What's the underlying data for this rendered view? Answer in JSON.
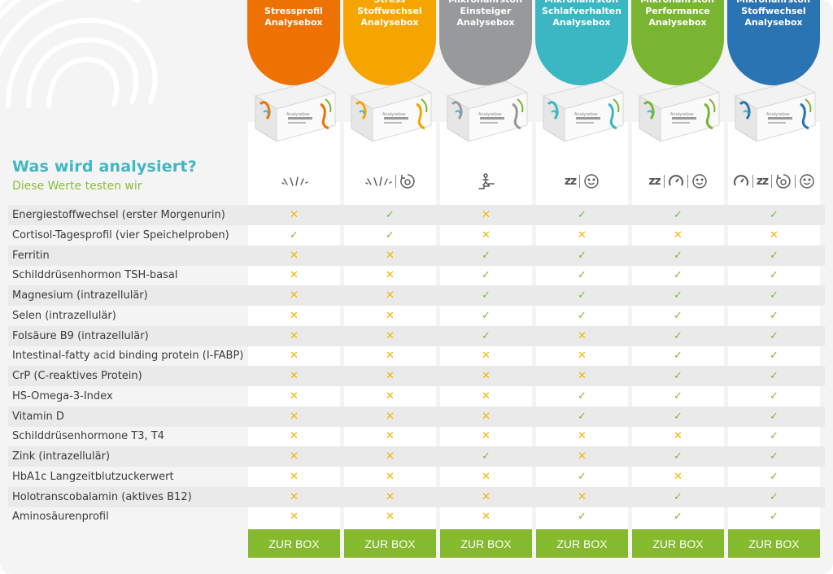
{
  "heading": {
    "title": "Was wird analysiert?",
    "subtitle": "Diese Werte testen wir"
  },
  "box_label": "Analysebox",
  "colors": {
    "check": "#7cb82f",
    "cross": "#f5b400",
    "button": "#85b92e",
    "title": "#3fb7c4",
    "subtitle": "#8bbe3a"
  },
  "products": [
    {
      "title": "Stressprofil\nAnalysebox",
      "color": "#ee7203",
      "icons": [
        "lab-tubes-icon"
      ],
      "button": "ZUR BOX"
    },
    {
      "title": "Stress\nStoffwechsel\nAnalysebox",
      "color": "#f6a500",
      "icons": [
        "lab-tubes-icon",
        "metabolism-icon"
      ],
      "button": "ZUR BOX"
    },
    {
      "title": "Mikronährstoff\nEinsteiger\nAnalysebox",
      "color": "#97999b",
      "icons": [
        "stairs-person-icon"
      ],
      "button": "ZUR BOX"
    },
    {
      "title": "Mikronährstoff\nSchlafverhalten\nAnalysebox",
      "color": "#3ab7c3",
      "icons": [
        "sleep-zz-icon",
        "smiley-icon"
      ],
      "button": "ZUR BOX"
    },
    {
      "title": "Mikronährstoff\nPerformance\nAnalysebox",
      "color": "#7ab531",
      "icons": [
        "sleep-zz-icon",
        "speedometer-icon",
        "smiley-icon"
      ],
      "button": "ZUR BOX"
    },
    {
      "title": "Mikronährstoff\nStoffwechsel\nAnalysebox",
      "color": "#2b74b4",
      "icons": [
        "speedometer-icon",
        "sleep-zz-icon",
        "metabolism-icon",
        "smiley-icon"
      ],
      "button": "ZUR BOX"
    }
  ],
  "rows": [
    {
      "label": "Energiestoffwechsel (erster Morgenurin)",
      "values": [
        false,
        true,
        false,
        true,
        true,
        true
      ]
    },
    {
      "label": "Cortisol-Tagesprofil (vier Speichelproben)",
      "values": [
        true,
        true,
        false,
        false,
        false,
        false
      ]
    },
    {
      "label": "Ferritin",
      "values": [
        false,
        false,
        true,
        true,
        true,
        true
      ]
    },
    {
      "label": "Schilddrüsenhormon TSH-basal",
      "values": [
        false,
        false,
        true,
        true,
        true,
        true
      ]
    },
    {
      "label": "Magnesium (intrazellulär)",
      "values": [
        false,
        false,
        true,
        true,
        true,
        true
      ]
    },
    {
      "label": "Selen (intrazellulär)",
      "values": [
        false,
        false,
        true,
        true,
        true,
        true
      ]
    },
    {
      "label": "Folsäure B9 (intrazellulär)",
      "values": [
        false,
        false,
        true,
        false,
        true,
        true
      ]
    },
    {
      "label": "Intestinal-fatty acid binding protein (I-FABP)",
      "values": [
        false,
        false,
        false,
        false,
        true,
        true
      ]
    },
    {
      "label": "CrP (C-reaktives Protein)",
      "values": [
        false,
        false,
        false,
        false,
        true,
        true
      ]
    },
    {
      "label": "HS-Omega-3-Index",
      "values": [
        false,
        false,
        false,
        true,
        true,
        true
      ]
    },
    {
      "label": "Vitamin D",
      "values": [
        false,
        false,
        false,
        true,
        true,
        true
      ]
    },
    {
      "label": "Schilddrüsenhormone T3, T4",
      "values": [
        false,
        false,
        false,
        false,
        false,
        true
      ]
    },
    {
      "label": "Zink (intrazellulär)",
      "values": [
        false,
        false,
        true,
        false,
        true,
        true
      ]
    },
    {
      "label": "HbA1c Langzeitblutzuckerwert",
      "values": [
        false,
        false,
        false,
        true,
        false,
        true
      ]
    },
    {
      "label": "Holotranscobalamin (aktives B12)",
      "values": [
        false,
        false,
        false,
        false,
        true,
        true
      ]
    },
    {
      "label": "Aminosäurenprofil",
      "values": [
        false,
        false,
        false,
        true,
        true,
        true
      ]
    }
  ]
}
